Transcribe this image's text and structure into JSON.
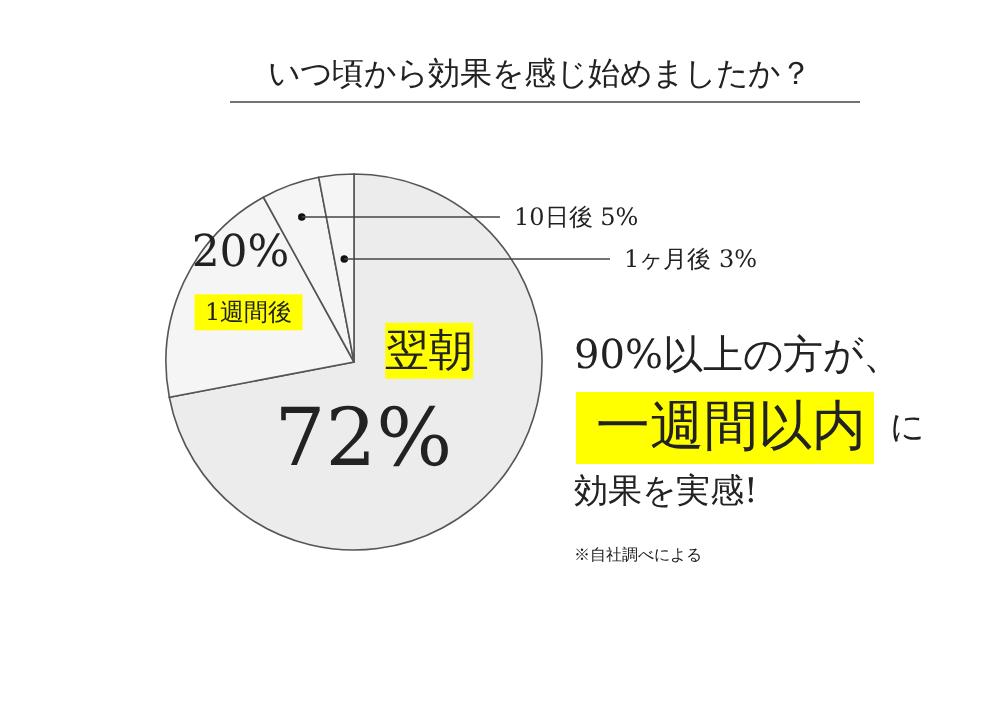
{
  "chart_data": {
    "type": "pie",
    "title": "いつ頃から効果を感じ始めましたか？",
    "categories": [
      "翌朝",
      "1週間後",
      "10日後",
      "1ヶ月後"
    ],
    "values": [
      72,
      20,
      5,
      3
    ],
    "value_labels": [
      "72%",
      "20%",
      "5%",
      "3%"
    ],
    "colors": [
      "#ececec",
      "#f5f5f5",
      "#f5f5f5",
      "#f5f5f5"
    ],
    "annotations": [
      "90%以上の方が、",
      "一週間以内",
      "に",
      "効果を実感!",
      "※自社調べによる"
    ]
  }
}
